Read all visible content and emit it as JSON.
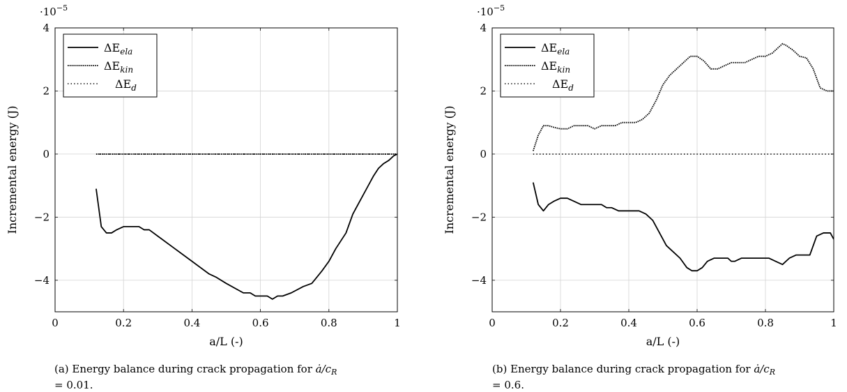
{
  "chart_data": [
    {
      "type": "line",
      "id": "a",
      "caption_prefix": "(a) Energy balance during crack propagation for ",
      "caption_ratio": "ȧ/c",
      "caption_sub": "R",
      "caption_line2": "= 0.01.",
      "xlabel": "a/L (-)",
      "ylabel": "Incremental energy (J)",
      "y_exponent_base": "·10",
      "y_exponent": "−5",
      "xlim": [
        0,
        1
      ],
      "ylim": [
        -5,
        4
      ],
      "xticks": [
        "0",
        "0.2",
        "0.4",
        "0.6",
        "0.8",
        "1"
      ],
      "yticks": [
        "−4",
        "−2",
        "0",
        "2",
        "4"
      ],
      "grid": true,
      "legend_position": "top-left",
      "series": [
        {
          "label_symbol": "ΔE",
          "label_sub": "ela",
          "style": "solid",
          "x": [
            0.12,
            0.135,
            0.15,
            0.165,
            0.18,
            0.2,
            0.22,
            0.245,
            0.26,
            0.275,
            0.3,
            0.35,
            0.4,
            0.45,
            0.47,
            0.5,
            0.55,
            0.57,
            0.585,
            0.6,
            0.62,
            0.635,
            0.65,
            0.665,
            0.69,
            0.725,
            0.75,
            0.765,
            0.78,
            0.8,
            0.82,
            0.85,
            0.87,
            0.89,
            0.91,
            0.93,
            0.945,
            0.96,
            0.975,
            0.99,
            1.0
          ],
          "y": [
            -1.1,
            -2.3,
            -2.5,
            -2.5,
            -2.4,
            -2.3,
            -2.3,
            -2.3,
            -2.4,
            -2.4,
            -2.6,
            -3.0,
            -3.4,
            -3.8,
            -3.9,
            -4.1,
            -4.4,
            -4.4,
            -4.5,
            -4.5,
            -4.5,
            -4.6,
            -4.5,
            -4.5,
            -4.4,
            -4.2,
            -4.1,
            -3.9,
            -3.7,
            -3.4,
            -3.0,
            -2.5,
            -1.9,
            -1.5,
            -1.1,
            -0.7,
            -0.45,
            -0.3,
            -0.2,
            -0.05,
            0.0
          ]
        },
        {
          "label_symbol": "ΔE",
          "label_sub": "kin",
          "style": "densely-dotted",
          "x": [
            0.12,
            0.3,
            0.5,
            0.7,
            0.9,
            1.0
          ],
          "y": [
            0,
            0,
            0,
            0,
            0,
            0
          ]
        },
        {
          "label_symbol": "ΔE",
          "label_sub": "d",
          "style": "dotted",
          "x": [
            0.12,
            0.3,
            0.5,
            0.7,
            0.9,
            1.0
          ],
          "y": [
            0,
            0,
            0,
            0,
            0,
            0
          ]
        }
      ]
    },
    {
      "type": "line",
      "id": "b",
      "caption_prefix": "(b) Energy balance during crack propagation for ",
      "caption_ratio": "ȧ/c",
      "caption_sub": "R",
      "caption_line2": "= 0.6.",
      "xlabel": "a/L (-)",
      "ylabel": "Incremental energy (J)",
      "y_exponent_base": "·10",
      "y_exponent": "−5",
      "xlim": [
        0,
        1
      ],
      "ylim": [
        -5,
        4
      ],
      "xticks": [
        "0",
        "0.2",
        "0.4",
        "0.6",
        "0.8",
        "1"
      ],
      "yticks": [
        "−4",
        "−2",
        "0",
        "2",
        "4"
      ],
      "grid": true,
      "legend_position": "top-left",
      "series": [
        {
          "label_symbol": "ΔE",
          "label_sub": "ela",
          "style": "solid",
          "x": [
            0.12,
            0.135,
            0.15,
            0.165,
            0.18,
            0.2,
            0.22,
            0.24,
            0.26,
            0.28,
            0.3,
            0.32,
            0.335,
            0.35,
            0.37,
            0.39,
            0.41,
            0.43,
            0.45,
            0.47,
            0.49,
            0.51,
            0.53,
            0.55,
            0.57,
            0.585,
            0.6,
            0.615,
            0.63,
            0.65,
            0.67,
            0.69,
            0.7,
            0.71,
            0.73,
            0.75,
            0.77,
            0.79,
            0.81,
            0.83,
            0.85,
            0.87,
            0.89,
            0.91,
            0.93,
            0.95,
            0.97,
            0.99,
            1.0
          ],
          "y": [
            -0.9,
            -1.6,
            -1.8,
            -1.6,
            -1.5,
            -1.4,
            -1.4,
            -1.5,
            -1.6,
            -1.6,
            -1.6,
            -1.6,
            -1.7,
            -1.7,
            -1.8,
            -1.8,
            -1.8,
            -1.8,
            -1.9,
            -2.1,
            -2.5,
            -2.9,
            -3.1,
            -3.3,
            -3.6,
            -3.7,
            -3.7,
            -3.6,
            -3.4,
            -3.3,
            -3.3,
            -3.3,
            -3.4,
            -3.4,
            -3.3,
            -3.3,
            -3.3,
            -3.3,
            -3.3,
            -3.4,
            -3.5,
            -3.3,
            -3.2,
            -3.2,
            -3.2,
            -2.6,
            -2.5,
            -2.5,
            -2.7
          ]
        },
        {
          "label_symbol": "ΔE",
          "label_sub": "kin",
          "style": "densely-dotted",
          "x": [
            0.12,
            0.135,
            0.15,
            0.165,
            0.18,
            0.2,
            0.22,
            0.24,
            0.26,
            0.28,
            0.3,
            0.32,
            0.34,
            0.36,
            0.38,
            0.4,
            0.42,
            0.44,
            0.46,
            0.48,
            0.5,
            0.52,
            0.54,
            0.56,
            0.58,
            0.6,
            0.62,
            0.64,
            0.66,
            0.68,
            0.7,
            0.72,
            0.74,
            0.76,
            0.78,
            0.8,
            0.82,
            0.84,
            0.85,
            0.86,
            0.88,
            0.9,
            0.92,
            0.94,
            0.96,
            0.98,
            1.0
          ],
          "y": [
            0.1,
            0.6,
            0.9,
            0.9,
            0.85,
            0.8,
            0.8,
            0.9,
            0.9,
            0.9,
            0.8,
            0.9,
            0.9,
            0.9,
            1.0,
            1.0,
            1.0,
            1.1,
            1.3,
            1.7,
            2.2,
            2.5,
            2.7,
            2.9,
            3.1,
            3.1,
            2.95,
            2.7,
            2.7,
            2.8,
            2.9,
            2.9,
            2.9,
            3.0,
            3.1,
            3.1,
            3.2,
            3.4,
            3.5,
            3.45,
            3.3,
            3.1,
            3.05,
            2.7,
            2.1,
            2.0,
            2.0
          ]
        },
        {
          "label_symbol": "ΔE",
          "label_sub": "d",
          "style": "dotted",
          "x": [
            0.12,
            0.3,
            0.5,
            0.7,
            0.9,
            1.0
          ],
          "y": [
            0,
            0,
            0,
            0,
            0,
            0
          ]
        }
      ]
    }
  ]
}
